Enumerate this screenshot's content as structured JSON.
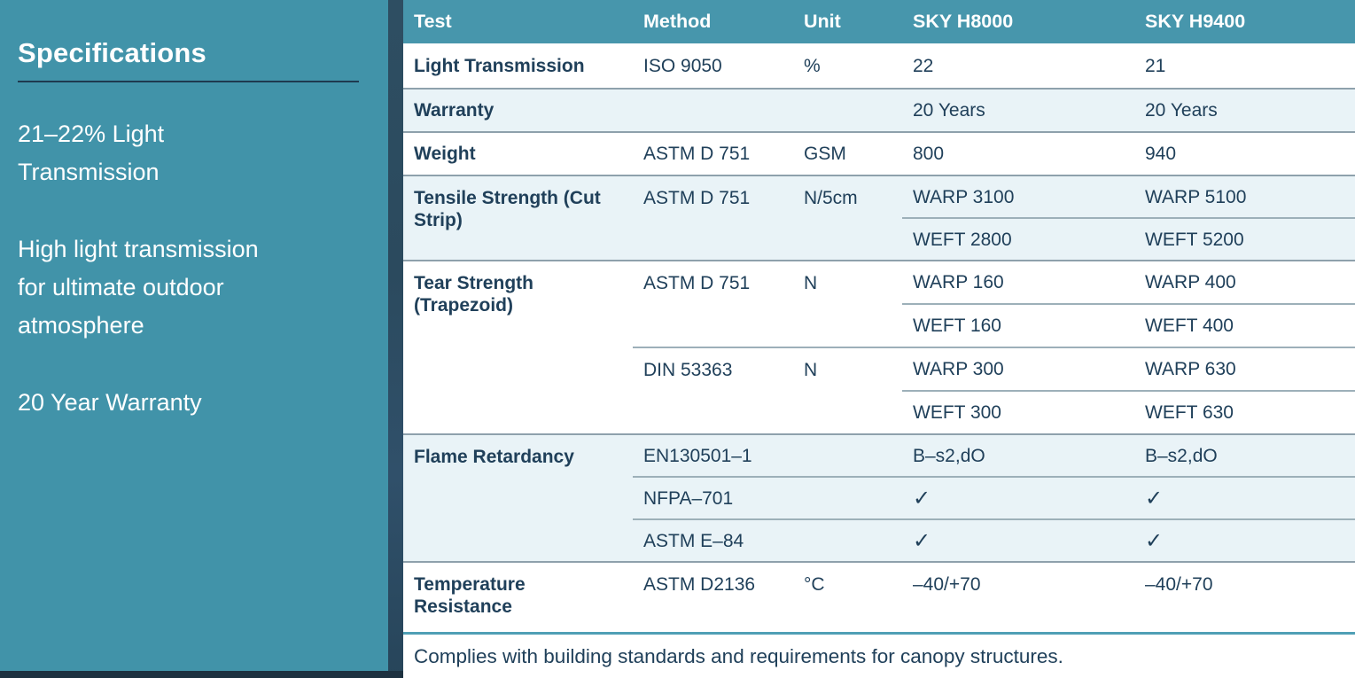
{
  "colors": {
    "panel_teal": "#4193a9",
    "header_teal": "#4796ac",
    "divider_strip": "#2e4e62",
    "bottom_bar": "#1d3140",
    "row_alt_blue": "#e9f3f7",
    "text_navy": "#20405a",
    "rule_gray": "#8ea1ac",
    "footer_rule_teal": "#4f9fb5"
  },
  "sidebar": {
    "title": "Specifications",
    "paragraphs": [
      {
        "lines": [
          "21–22% Light",
          "Transmission"
        ]
      },
      {
        "lines": [
          "High light transmission",
          "for ultimate outdoor",
          "atmosphere"
        ]
      },
      {
        "lines": [
          "20 Year Warranty"
        ]
      }
    ]
  },
  "table": {
    "columns": [
      "Test",
      "Method",
      "Unit",
      "SKY H8000",
      "SKY H9400"
    ],
    "light_transmission": {
      "label": "Light Transmission",
      "method": "ISO 9050",
      "unit": "%",
      "h8000": "22",
      "h9400": "21"
    },
    "warranty": {
      "label": "Warranty",
      "h8000": "20 Years",
      "h9400": "20 Years"
    },
    "weight": {
      "label": "Weight",
      "method": "ASTM D 751",
      "unit": "GSM",
      "h8000": "800",
      "h9400": "940"
    },
    "tensile_strength": {
      "label": "Tensile Strength (Cut Strip)",
      "method": "ASTM D 751",
      "unit": "N/5cm",
      "rows": [
        {
          "h8000": "WARP 3100",
          "h9400": "WARP 5100"
        },
        {
          "h8000": "WEFT 2800",
          "h9400": "WEFT 5200"
        }
      ]
    },
    "tear_strength": {
      "label": "Tear Strength (Trapezoid)",
      "groups": [
        {
          "method": "ASTM D 751",
          "unit": "N",
          "rows": [
            {
              "h8000": "WARP 160",
              "h9400": "WARP 400"
            },
            {
              "h8000": "WEFT 160",
              "h9400": "WEFT 400"
            }
          ]
        },
        {
          "method": "DIN 53363",
          "unit": "N",
          "rows": [
            {
              "h8000": "WARP 300",
              "h9400": "WARP 630"
            },
            {
              "h8000": "WEFT 300",
              "h9400": "WEFT 630"
            }
          ]
        }
      ]
    },
    "flame_retardancy": {
      "label": "Flame Retardancy",
      "rows": [
        {
          "method": "EN130501–1",
          "h8000": "B–s2,dO",
          "h9400": "B–s2,dO"
        },
        {
          "method": "NFPA–701",
          "h8000": "✓",
          "h9400": "✓"
        },
        {
          "method": "ASTM E–84",
          "h8000": "✓",
          "h9400": "✓"
        }
      ]
    },
    "temperature_resistance": {
      "label": "Temperature Resistance",
      "method": "ASTM D2136",
      "unit": "°C",
      "h8000": "–40/+70",
      "h9400": "–40/+70"
    },
    "footnote": "Complies with building standards and requirements for canopy structures."
  }
}
